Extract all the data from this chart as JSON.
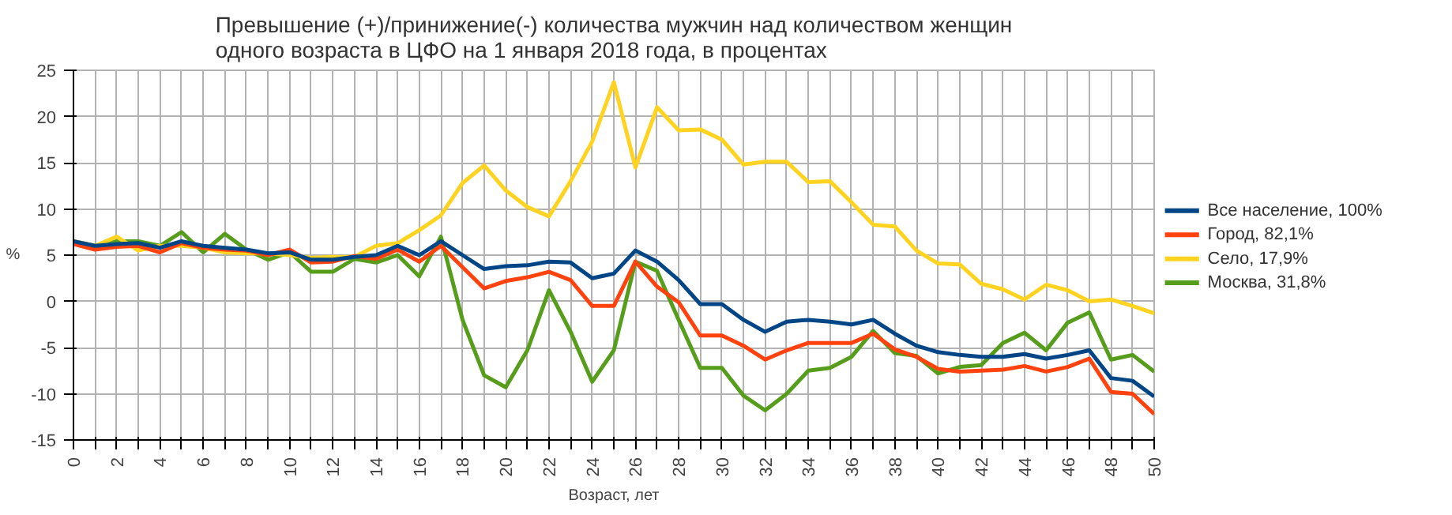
{
  "chart_data": {
    "type": "line",
    "title": "Превышение (+)/принижение(-) количества мужчин над количеством женщин\nодного возраста в ЦФО на 1 января 2018 года, в процентах",
    "xlabel": "Возраст, лет",
    "ylabel": "%",
    "x": [
      0,
      1,
      2,
      3,
      4,
      5,
      6,
      7,
      8,
      9,
      10,
      11,
      12,
      13,
      14,
      15,
      16,
      17,
      18,
      19,
      20,
      21,
      22,
      23,
      24,
      25,
      26,
      27,
      28,
      29,
      30,
      31,
      32,
      33,
      34,
      35,
      36,
      37,
      38,
      39,
      40,
      41,
      42,
      43,
      44,
      45,
      46,
      47,
      48,
      49,
      50
    ],
    "xlim": [
      0,
      50
    ],
    "xticks": [
      0,
      {
        "value": 1,
        "label": null
      },
      2,
      {
        "value": 3,
        "label": null
      },
      4,
      {
        "value": 5,
        "label": null
      },
      6,
      {
        "value": 7,
        "label": null
      },
      8,
      {
        "value": 9,
        "label": null
      },
      10,
      {
        "value": 11,
        "label": null
      },
      12,
      {
        "value": 13,
        "label": null
      },
      14,
      {
        "value": 15,
        "label": null
      },
      16,
      {
        "value": 17,
        "label": null
      },
      18,
      {
        "value": 19,
        "label": null
      },
      20,
      {
        "value": 21,
        "label": null
      },
      22,
      {
        "value": 23,
        "label": null
      },
      24,
      {
        "value": 25,
        "label": null
      },
      26,
      {
        "value": 27,
        "label": null
      },
      28,
      {
        "value": 29,
        "label": null
      },
      30,
      {
        "value": 31,
        "label": null
      },
      32,
      {
        "value": 33,
        "label": null
      },
      34,
      {
        "value": 35,
        "label": null
      },
      36,
      {
        "value": 37,
        "label": null
      },
      38,
      {
        "value": 39,
        "label": null
      },
      40,
      {
        "value": 41,
        "label": null
      },
      42,
      {
        "value": 43,
        "label": null
      },
      44,
      {
        "value": 45,
        "label": null
      },
      46,
      {
        "value": 47,
        "label": null
      },
      48,
      {
        "value": 49,
        "label": null
      },
      50
    ],
    "ylim": [
      -15,
      25
    ],
    "yticks": [
      -15,
      -10,
      -5,
      0,
      5,
      10,
      15,
      20,
      25
    ],
    "grid": true,
    "legend": "right",
    "marker": "none",
    "line_style": "solid",
    "series": [
      {
        "name": "Все население, 100%",
        "color": "#004586",
        "values": [
          6.5,
          6,
          6.2,
          6.3,
          5.8,
          6.5,
          6,
          5.8,
          5.6,
          5.2,
          5.3,
          4.5,
          4.5,
          4.8,
          5,
          6,
          5,
          6.5,
          5,
          3.5,
          3.8,
          3.9,
          4.3,
          4.2,
          2.5,
          3,
          5.5,
          4.3,
          2.3,
          -0.3,
          -0.3,
          -2,
          -3.3,
          -2.2,
          -2,
          -2.2,
          -2.5,
          -2,
          -3.5,
          -4.8,
          -5.5,
          -5.8,
          -6,
          -6,
          -5.7,
          -6.2,
          -5.8,
          -5.3,
          -8.3,
          -8.6,
          -10.3
        ]
      },
      {
        "name": "Город, 82,1%",
        "color": "#ff420e",
        "values": [
          6.2,
          5.6,
          5.9,
          6,
          5.3,
          6.3,
          5.8,
          5.6,
          5.5,
          5,
          5.6,
          4.2,
          4.3,
          4.9,
          4.6,
          5.6,
          4.3,
          6,
          3.7,
          1.4,
          2.2,
          2.6,
          3.2,
          2.3,
          -0.5,
          -0.5,
          4.3,
          1.6,
          -0.1,
          -3.7,
          -3.7,
          -4.8,
          -6.3,
          -5.3,
          -4.5,
          -4.5,
          -4.5,
          -3.5,
          -5.2,
          -6,
          -7.3,
          -7.6,
          -7.5,
          -7.4,
          -7,
          -7.6,
          -7.1,
          -6.2,
          -9.8,
          -10,
          -12.2
        ]
      },
      {
        "name": "Село, 17,9%",
        "color": "#ffd320",
        "values": [
          6.5,
          6,
          7,
          5.5,
          6,
          6,
          5.8,
          5.3,
          5.2,
          5.2,
          5,
          4.7,
          4.8,
          4.8,
          6,
          6.3,
          7.7,
          9.3,
          12.8,
          14.7,
          12,
          10.2,
          9.2,
          13,
          17.3,
          23.7,
          14.5,
          21,
          18.5,
          18.6,
          17.5,
          14.8,
          15.1,
          15.1,
          12.9,
          13,
          10.7,
          8.3,
          8.1,
          5.5,
          4.1,
          4,
          1.9,
          1.3,
          0.2,
          1.8,
          1.2,
          0,
          0.2,
          -0.5,
          -1.3
        ]
      },
      {
        "name": "Москва, 31,8%",
        "color": "#579d1c",
        "values": [
          6.5,
          6,
          6.5,
          6.5,
          6,
          7.5,
          5.3,
          7.3,
          5.6,
          4.5,
          5.3,
          3.2,
          3.2,
          4.6,
          4.2,
          5,
          2.7,
          7,
          -2,
          -8,
          -9.3,
          -5.3,
          1.2,
          -3.3,
          -8.7,
          -5.3,
          4.3,
          3.3,
          -2,
          -7.2,
          -7.2,
          -10.2,
          -11.8,
          -10,
          -7.5,
          -7.2,
          -6,
          -3.2,
          -5.6,
          -5.9,
          -7.8,
          -7.1,
          -6.9,
          -4.5,
          -3.4,
          -5.3,
          -2.3,
          -1.2,
          -6.3,
          -5.8,
          -7.6
        ]
      }
    ]
  }
}
